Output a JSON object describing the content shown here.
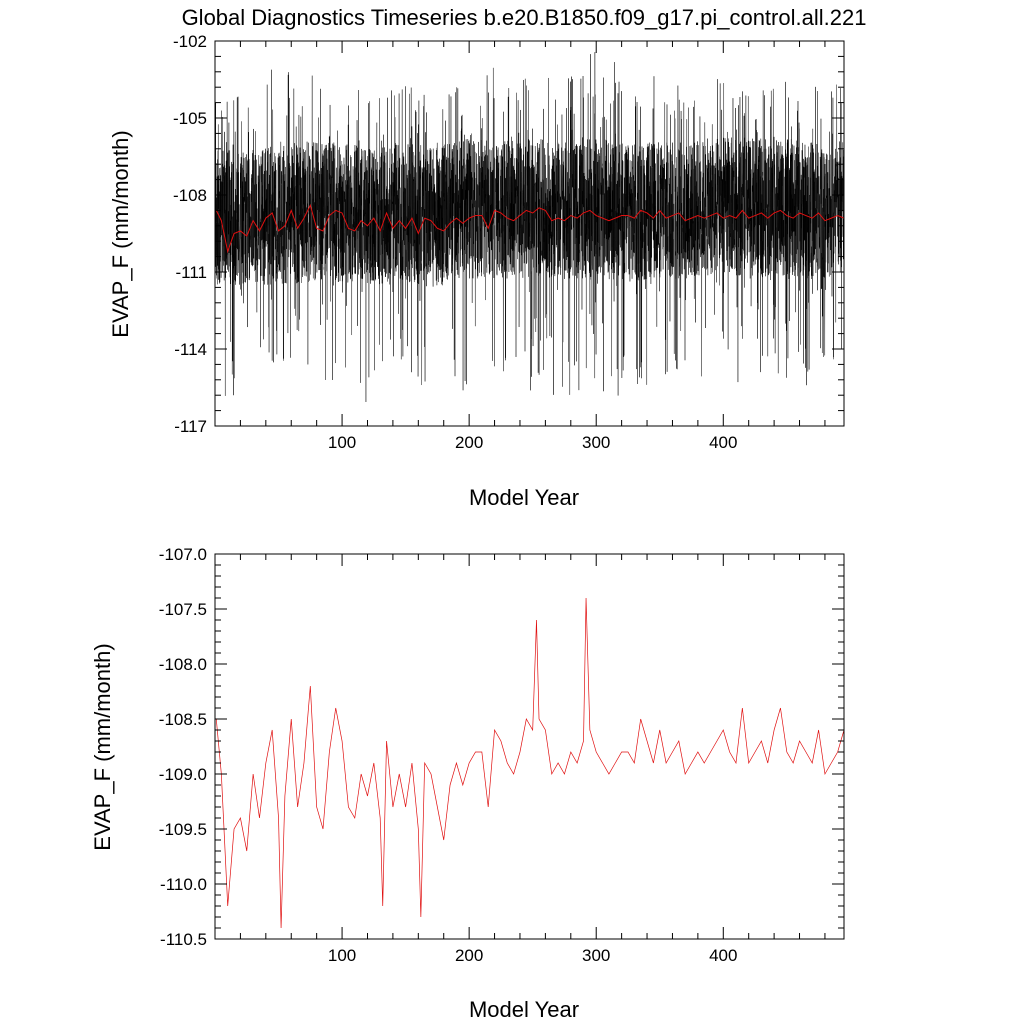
{
  "title": "Global Diagnostics Timeseries b.e20.B1850.f09_g17.pi_control.all.221",
  "colors": {
    "monthly": "#000000",
    "annual": "#e01010",
    "axis": "#000000"
  },
  "chart_data": [
    {
      "type": "line",
      "xlabel": "Model Year",
      "ylabel": "EVAP_F (mm/month)",
      "xlim": [
        0,
        495
      ],
      "ylim": [
        -117,
        -102
      ],
      "xticks": [
        100,
        200,
        300,
        400
      ],
      "xtick_labels": [
        "100",
        "200",
        "300",
        "400"
      ],
      "yticks": [
        -102,
        -105,
        -108,
        -111,
        -114,
        -117
      ],
      "ytick_labels": [
        "-102",
        "-105",
        "-108",
        "-111",
        "-114",
        "-117"
      ],
      "grid": false,
      "series": [
        {
          "key": "monthly",
          "kind": "monthly_envelope",
          "x": [
            1,
            25,
            50,
            75,
            100,
            125,
            150,
            175,
            200,
            225,
            250,
            275,
            300,
            325,
            350,
            375,
            400,
            425,
            450,
            475,
            495
          ],
          "mean": [
            -109.0,
            -109.0,
            -109.0,
            -108.9,
            -109.0,
            -109.0,
            -109.0,
            -109.1,
            -108.9,
            -108.9,
            -108.8,
            -108.9,
            -108.8,
            -109.0,
            -108.9,
            -108.9,
            -108.7,
            -108.8,
            -108.8,
            -108.9,
            -108.8
          ],
          "core_low": [
            -111.5,
            -111.5,
            -111.5,
            -111.4,
            -111.4,
            -111.5,
            -111.5,
            -111.6,
            -111.3,
            -111.3,
            -111.2,
            -111.3,
            -111.2,
            -111.4,
            -111.3,
            -111.3,
            -111.1,
            -111.2,
            -111.2,
            -111.3,
            -111.2
          ],
          "core_high": [
            -106.2,
            -106.3,
            -106.0,
            -105.9,
            -106.0,
            -106.1,
            -106.0,
            -106.1,
            -105.8,
            -105.9,
            -105.8,
            -105.9,
            -105.8,
            -106.0,
            -105.9,
            -105.9,
            -105.7,
            -105.8,
            -105.8,
            -105.9,
            -105.8
          ],
          "min": [
            -116.2,
            -115.7,
            -114.9,
            -115.3,
            -115.7,
            -116.7,
            -115.5,
            -116.6,
            -115.7,
            -115.6,
            -115.8,
            -115.8,
            -115.8,
            -116.6,
            -115.5,
            -115.1,
            -115.2,
            -115.5,
            -115.4,
            -115.6,
            -116.6
          ],
          "max": [
            -104.0,
            -104.2,
            -102.5,
            -103.2,
            -103.8,
            -104.0,
            -103.5,
            -103.9,
            -103.2,
            -102.9,
            -103.2,
            -103.2,
            -102.3,
            -103.2,
            -103.1,
            -103.9,
            -103.3,
            -104.0,
            -103.4,
            -103.8,
            -103.5
          ]
        },
        {
          "key": "annual",
          "kind": "annual_overlay",
          "x": [
            1,
            5,
            10,
            15,
            20,
            25,
            30,
            35,
            40,
            45,
            50,
            55,
            60,
            65,
            70,
            75,
            80,
            85,
            90,
            95,
            100,
            105,
            110,
            115,
            120,
            125,
            130,
            135,
            140,
            145,
            150,
            155,
            160,
            165,
            170,
            175,
            180,
            185,
            190,
            195,
            200,
            205,
            210,
            215,
            220,
            225,
            230,
            235,
            240,
            245,
            250,
            255,
            260,
            265,
            270,
            275,
            280,
            285,
            290,
            295,
            300,
            305,
            310,
            315,
            320,
            325,
            330,
            335,
            340,
            345,
            350,
            355,
            360,
            365,
            370,
            375,
            380,
            385,
            390,
            395,
            400,
            405,
            410,
            415,
            420,
            425,
            430,
            435,
            440,
            445,
            450,
            455,
            460,
            465,
            470,
            475,
            480,
            485,
            490,
            495
          ],
          "y": [
            -108.6,
            -109.0,
            -110.2,
            -109.5,
            -109.4,
            -109.6,
            -109.0,
            -109.4,
            -108.9,
            -108.7,
            -109.4,
            -109.2,
            -108.6,
            -109.3,
            -108.9,
            -108.4,
            -109.3,
            -109.4,
            -108.8,
            -108.6,
            -108.7,
            -109.3,
            -109.4,
            -109.0,
            -109.2,
            -108.9,
            -109.4,
            -108.7,
            -109.3,
            -109.0,
            -109.3,
            -108.9,
            -109.5,
            -108.9,
            -109.0,
            -109.3,
            -109.4,
            -109.1,
            -108.9,
            -109.1,
            -108.9,
            -108.8,
            -108.8,
            -109.3,
            -108.6,
            -108.7,
            -108.9,
            -109.0,
            -108.8,
            -108.6,
            -108.7,
            -108.5,
            -108.6,
            -109.0,
            -108.9,
            -109.0,
            -108.8,
            -108.9,
            -108.7,
            -108.6,
            -108.8,
            -108.9,
            -109.0,
            -108.9,
            -108.8,
            -108.8,
            -108.9,
            -108.6,
            -108.7,
            -108.9,
            -108.6,
            -108.9,
            -108.8,
            -108.7,
            -109.0,
            -108.9,
            -108.8,
            -108.9,
            -108.8,
            -108.7,
            -108.9,
            -108.8,
            -108.9,
            -108.6,
            -108.9,
            -108.8,
            -108.7,
            -108.9,
            -108.7,
            -108.6,
            -108.8,
            -108.9,
            -108.7,
            -108.8,
            -108.9,
            -108.7,
            -109.0,
            -108.9,
            -108.8,
            -108.9
          ]
        }
      ]
    },
    {
      "type": "line",
      "xlabel": "Model Year",
      "ylabel": "EVAP_F (mm/month)",
      "xlim": [
        0,
        495
      ],
      "ylim": [
        -110.5,
        -107.0
      ],
      "xticks": [
        100,
        200,
        300,
        400
      ],
      "xtick_labels": [
        "100",
        "200",
        "300",
        "400"
      ],
      "yticks": [
        -107.0,
        -107.5,
        -108.0,
        -108.5,
        -109.0,
        -109.5,
        -110.0,
        -110.5
      ],
      "ytick_labels": [
        "-107.0",
        "-107.5",
        "-108.0",
        "-108.5",
        "-109.0",
        "-109.5",
        "-110.0",
        "-110.5"
      ],
      "grid": false,
      "series": [
        {
          "key": "annual",
          "kind": "line",
          "x": [
            1,
            5,
            10,
            15,
            20,
            25,
            30,
            35,
            40,
            45,
            50,
            52,
            55,
            60,
            65,
            70,
            75,
            80,
            85,
            90,
            95,
            100,
            105,
            110,
            115,
            120,
            125,
            130,
            132,
            135,
            140,
            145,
            150,
            155,
            160,
            162,
            165,
            170,
            175,
            180,
            185,
            190,
            195,
            200,
            205,
            210,
            215,
            220,
            225,
            230,
            235,
            240,
            245,
            250,
            253,
            255,
            260,
            265,
            270,
            275,
            280,
            285,
            290,
            292,
            295,
            300,
            305,
            310,
            315,
            320,
            325,
            330,
            335,
            340,
            345,
            350,
            355,
            360,
            365,
            370,
            375,
            380,
            385,
            390,
            395,
            400,
            405,
            410,
            415,
            420,
            425,
            430,
            435,
            440,
            445,
            450,
            455,
            460,
            465,
            470,
            475,
            480,
            485,
            490,
            495
          ],
          "y": [
            -108.5,
            -109.0,
            -110.2,
            -109.5,
            -109.4,
            -109.7,
            -109.0,
            -109.4,
            -108.9,
            -108.6,
            -109.4,
            -110.4,
            -109.2,
            -108.5,
            -109.3,
            -108.9,
            -108.2,
            -109.3,
            -109.5,
            -108.8,
            -108.4,
            -108.7,
            -109.3,
            -109.4,
            -109.0,
            -109.2,
            -108.9,
            -109.4,
            -110.2,
            -108.7,
            -109.3,
            -109.0,
            -109.3,
            -108.9,
            -109.5,
            -110.3,
            -108.9,
            -109.0,
            -109.3,
            -109.6,
            -109.1,
            -108.9,
            -109.1,
            -108.9,
            -108.8,
            -108.8,
            -109.3,
            -108.6,
            -108.7,
            -108.9,
            -109.0,
            -108.8,
            -108.5,
            -108.6,
            -107.6,
            -108.5,
            -108.6,
            -109.0,
            -108.9,
            -109.0,
            -108.8,
            -108.9,
            -108.7,
            -107.4,
            -108.6,
            -108.8,
            -108.9,
            -109.0,
            -108.9,
            -108.8,
            -108.8,
            -108.9,
            -108.5,
            -108.7,
            -108.9,
            -108.6,
            -108.9,
            -108.8,
            -108.7,
            -109.0,
            -108.9,
            -108.8,
            -108.9,
            -108.8,
            -108.7,
            -108.6,
            -108.8,
            -108.9,
            -108.4,
            -108.9,
            -108.8,
            -108.7,
            -108.9,
            -108.6,
            -108.4,
            -108.8,
            -108.9,
            -108.7,
            -108.8,
            -108.9,
            -108.6,
            -109.0,
            -108.9,
            -108.8,
            -108.6
          ]
        }
      ]
    }
  ]
}
